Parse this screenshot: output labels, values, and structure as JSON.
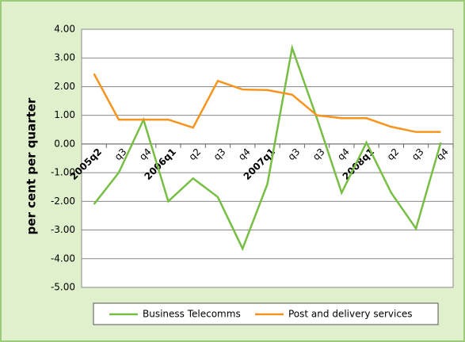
{
  "chart_data": {
    "type": "line",
    "y_axis_label": "per cent per quarter",
    "categories": [
      "2005q2",
      "q3",
      "q4",
      "2006q1",
      "q2",
      "q3",
      "q4",
      "2007q1",
      "q3",
      "q3",
      "q4",
      "2008q1",
      "q2",
      "q3",
      "q4"
    ],
    "series": [
      {
        "name": "Business Telecomms",
        "color": "#77bf44",
        "values": [
          -2.1,
          -1.0,
          0.85,
          -2.0,
          -1.2,
          -1.85,
          -3.65,
          -1.4,
          3.35,
          0.9,
          -1.7,
          0.05,
          -1.7,
          -2.95,
          0.05
        ]
      },
      {
        "name": "Post and delivery services",
        "color": "#f7941d",
        "values": [
          2.45,
          0.85,
          0.85,
          0.85,
          0.57,
          2.2,
          1.9,
          1.88,
          1.72,
          1.0,
          0.9,
          0.9,
          0.6,
          0.42,
          0.42
        ]
      }
    ],
    "ylim": [
      -5,
      4
    ],
    "yticks": [
      {
        "value": -5,
        "label": "-5.00"
      },
      {
        "value": -4,
        "label": "-4.00"
      },
      {
        "value": -3,
        "label": "-3.00"
      },
      {
        "value": -2,
        "label": "-2.00"
      },
      {
        "value": -1,
        "label": "-1.00"
      },
      {
        "value": 0,
        "label": "0.00"
      },
      {
        "value": 1,
        "label": "1.00"
      },
      {
        "value": 2,
        "label": "2.00"
      },
      {
        "value": 3,
        "label": "3.00"
      },
      {
        "value": 4,
        "label": "4.00"
      }
    ],
    "grid": true,
    "legend": "bottom"
  }
}
